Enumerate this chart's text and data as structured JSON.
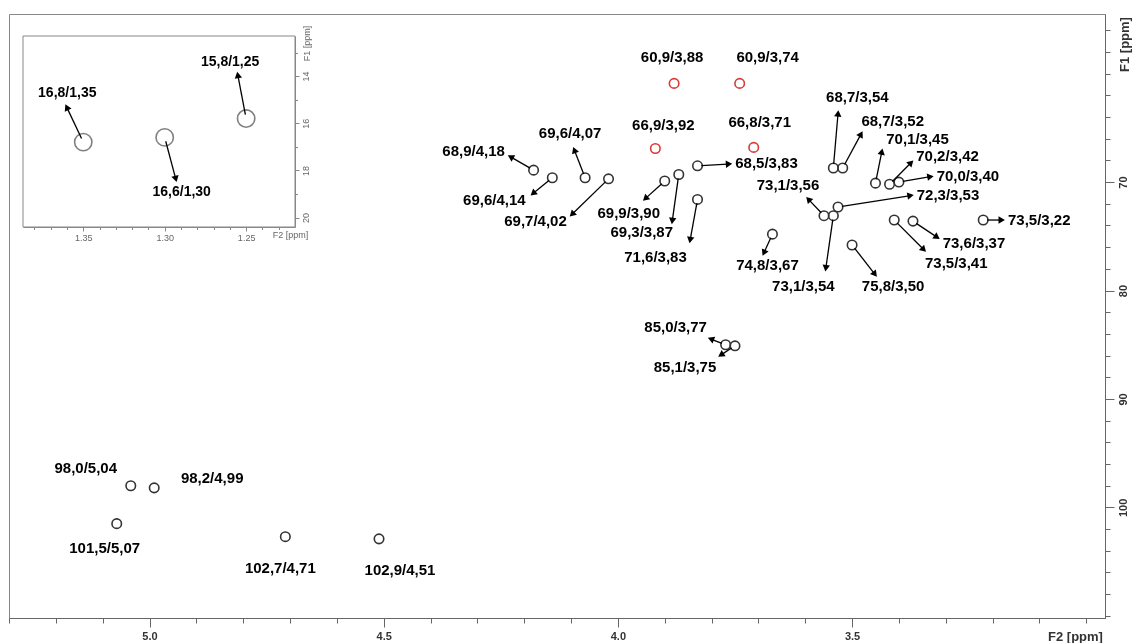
{
  "chart_data": [
    {
      "type": "scatter",
      "xlabel": "F2 [ppm]",
      "ylabel": "F1 [ppm]",
      "marker": "circle",
      "grid": false,
      "xlim": [
        5.3,
        2.96
      ],
      "ylim": [
        110.2,
        54.5
      ],
      "xticks": [
        {
          "value": 5.3,
          "label": null
        },
        {
          "value": 5.2,
          "label": null
        },
        {
          "value": 5.1,
          "label": null
        },
        {
          "value": 5,
          "label": "5.0"
        },
        {
          "value": 4.9,
          "label": null
        },
        {
          "value": 4.8,
          "label": null
        },
        {
          "value": 4.7,
          "label": null
        },
        {
          "value": 4.6,
          "label": null
        },
        4.5,
        {
          "value": 4.4,
          "label": null
        },
        {
          "value": 4.3,
          "label": null
        },
        {
          "value": 4.2,
          "label": null
        },
        {
          "value": 4.1,
          "label": null
        },
        {
          "value": 4,
          "label": "4.0"
        },
        {
          "value": 3.9,
          "label": null
        },
        {
          "value": 3.8,
          "label": null
        },
        {
          "value": 3.7,
          "label": null
        },
        {
          "value": 3.6,
          "label": null
        },
        3.5,
        {
          "value": 3.4,
          "label": null
        },
        {
          "value": 3.3,
          "label": null
        },
        {
          "value": 3.2,
          "label": null
        },
        {
          "value": 3.1,
          "label": null
        },
        {
          "value": 3,
          "label": null
        }
      ],
      "yticks": [
        {
          "value": 56,
          "label": null
        },
        {
          "value": 58,
          "label": null
        },
        {
          "value": 60,
          "label": null
        },
        {
          "value": 62,
          "label": null
        },
        {
          "value": 64,
          "label": null
        },
        {
          "value": 66,
          "label": null
        },
        {
          "value": 68,
          "label": null
        },
        70,
        {
          "value": 72,
          "label": null
        },
        {
          "value": 74,
          "label": null
        },
        {
          "value": 76,
          "label": null
        },
        {
          "value": 78,
          "label": null
        },
        80,
        {
          "value": 82,
          "label": null
        },
        {
          "value": 84,
          "label": null
        },
        {
          "value": 86,
          "label": null
        },
        {
          "value": 88,
          "label": null
        },
        90,
        {
          "value": 92,
          "label": null
        },
        {
          "value": 94,
          "label": null
        },
        {
          "value": 96,
          "label": null
        },
        {
          "value": 98,
          "label": null
        },
        100,
        {
          "value": 102,
          "label": null
        },
        {
          "value": 104,
          "label": null
        },
        {
          "value": 106,
          "label": null
        },
        {
          "value": 108,
          "label": null
        },
        {
          "value": 110,
          "label": null
        }
      ],
      "series": [
        {
          "color": "#333333",
          "x": [
            4.18,
            4.07,
            4.14,
            4.02,
            3.9,
            3.87,
            3.83,
            3.83,
            3.54,
            3.52,
            3.45,
            3.42,
            3.4,
            3.56,
            3.53,
            3.22,
            3.37,
            3.41,
            3.67,
            3.54,
            3.5,
            3.77,
            3.75,
            5.04,
            4.99,
            5.07,
            4.71,
            4.51
          ],
          "values": [
            68.9,
            69.6,
            69.6,
            69.7,
            69.9,
            69.3,
            71.6,
            68.5,
            68.7,
            68.7,
            70.1,
            70.2,
            70.0,
            73.1,
            72.3,
            73.5,
            73.6,
            73.5,
            74.8,
            73.1,
            75.8,
            85.0,
            85.1,
            98.0,
            98.2,
            101.5,
            102.7,
            102.9
          ]
        },
        {
          "color": "#d93a34",
          "x": [
            3.88,
            3.74,
            3.92,
            3.71
          ],
          "values": [
            60.9,
            60.9,
            66.9,
            66.8
          ]
        }
      ],
      "annotations": [
        {
          "text": "60,9/3,88",
          "x": 3.88,
          "y": 60.9
        },
        {
          "text": "60,9/3,74",
          "x": 3.74,
          "y": 60.9
        },
        {
          "text": "66,9/3,92",
          "x": 3.92,
          "y": 66.9
        },
        {
          "text": "66,8/3,71",
          "x": 3.71,
          "y": 66.8
        },
        {
          "text": "68,9/4,18",
          "x": 4.18,
          "y": 68.9
        },
        {
          "text": "69,6/4,07",
          "x": 4.07,
          "y": 69.6
        },
        {
          "text": "69,6/4,14",
          "x": 4.14,
          "y": 69.6
        },
        {
          "text": "69,7/4,02",
          "x": 4.02,
          "y": 69.7
        },
        {
          "text": "69,9/3,90",
          "x": 3.9,
          "y": 69.9
        },
        {
          "text": "69,3/3,87",
          "x": 3.87,
          "y": 69.3
        },
        {
          "text": "71,6/3,83",
          "x": 3.83,
          "y": 71.6
        },
        {
          "text": "68,5/3,83",
          "x": 3.83,
          "y": 68.5
        },
        {
          "text": "68,7/3,54",
          "x": 3.54,
          "y": 68.7
        },
        {
          "text": "68,7/3,52",
          "x": 3.52,
          "y": 68.7
        },
        {
          "text": "70,1/3,45",
          "x": 3.45,
          "y": 70.1
        },
        {
          "text": "70,2/3,42",
          "x": 3.42,
          "y": 70.2
        },
        {
          "text": "70,0/3,40",
          "x": 3.4,
          "y": 70.0
        },
        {
          "text": "73,1/3,56",
          "x": 3.56,
          "y": 73.1
        },
        {
          "text": "72,3/3,53",
          "x": 3.53,
          "y": 72.3
        },
        {
          "text": "73,5/3,22",
          "x": 3.22,
          "y": 73.5
        },
        {
          "text": "73,6/3,37",
          "x": 3.37,
          "y": 73.6
        },
        {
          "text": "73,5/3,41",
          "x": 3.41,
          "y": 73.5
        },
        {
          "text": "74,8/3,67",
          "x": 3.67,
          "y": 74.8
        },
        {
          "text": "73,1/3,54",
          "x": 3.54,
          "y": 73.1
        },
        {
          "text": "75,8/3,50",
          "x": 3.5,
          "y": 75.8
        },
        {
          "text": "85,0/3,77",
          "x": 3.77,
          "y": 85.0
        },
        {
          "text": "85,1/3,75",
          "x": 3.75,
          "y": 85.1
        },
        {
          "text": "98,0/5,04",
          "x": 5.04,
          "y": 98.0
        },
        {
          "text": "98,2/4,99",
          "x": 4.99,
          "y": 98.2
        },
        {
          "text": "101,5/5,07",
          "x": 5.07,
          "y": 101.5
        },
        {
          "text": "102,7/4,71",
          "x": 4.71,
          "y": 102.7
        },
        {
          "text": "102,9/4,51",
          "x": 4.51,
          "y": 102.9
        }
      ]
    },
    {
      "type": "scatter",
      "xlabel": "F2 [ppm]",
      "ylabel": "F1 [ppm]",
      "marker": "circle",
      "grid": false,
      "xlim": [
        1.387,
        1.22
      ],
      "ylim": [
        20.4,
        12.3
      ],
      "xticks": [
        {
          "value": 1.38,
          "label": null
        },
        {
          "value": 1.37,
          "label": null
        },
        {
          "value": 1.36,
          "label": null
        },
        1.35,
        {
          "value": 1.34,
          "label": null
        },
        {
          "value": 1.33,
          "label": null
        },
        {
          "value": 1.32,
          "label": null
        },
        {
          "value": 1.31,
          "label": null
        },
        {
          "value": 1.3,
          "label": "1.30"
        },
        {
          "value": 1.29,
          "label": null
        },
        {
          "value": 1.28,
          "label": null
        },
        {
          "value": 1.27,
          "label": null
        },
        {
          "value": 1.26,
          "label": null
        },
        1.25,
        {
          "value": 1.24,
          "label": null
        },
        {
          "value": 1.23,
          "label": null
        }
      ],
      "yticks": [
        {
          "value": 13,
          "label": null
        },
        14,
        {
          "value": 15,
          "label": null
        },
        16,
        {
          "value": 17,
          "label": null
        },
        18,
        {
          "value": 19,
          "label": null
        },
        20
      ],
      "series": [
        {
          "color": "#808080",
          "x": [
            1.35,
            1.25,
            1.3
          ],
          "values": [
            16.8,
            15.8,
            16.6
          ]
        }
      ],
      "annotations": [
        {
          "text": "16,8/1,35",
          "x": 1.35,
          "y": 16.8
        },
        {
          "text": "15,8/1,25",
          "x": 1.25,
          "y": 15.8
        },
        {
          "text": "16,6/1,30",
          "x": 1.3,
          "y": 16.6
        }
      ]
    }
  ]
}
